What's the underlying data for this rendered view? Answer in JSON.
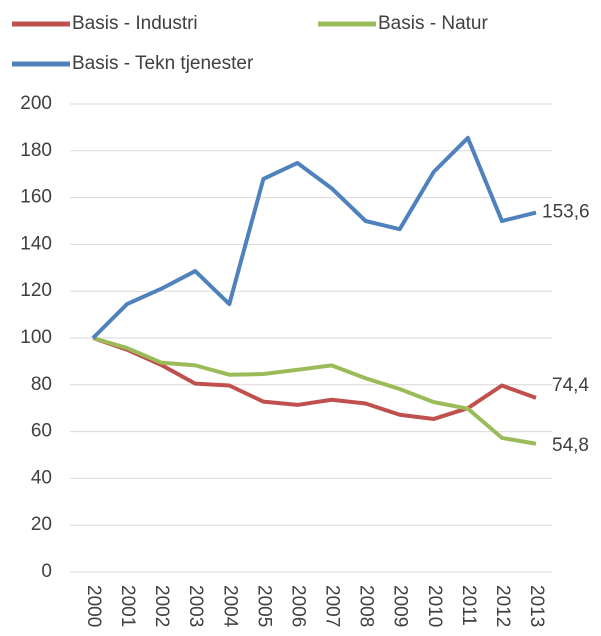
{
  "chart_data": {
    "type": "line",
    "categories": [
      "2000",
      "2001",
      "2002",
      "2003",
      "2004",
      "2005",
      "2006",
      "2007",
      "2008",
      "2009",
      "2010",
      "2011",
      "2012",
      "2013"
    ],
    "series": [
      {
        "name": "Basis - Industri",
        "color": "#c0504d",
        "values": [
          100,
          95,
          88.5,
          80.5,
          79.7,
          72.8,
          71.4,
          73.6,
          72,
          67.2,
          65.4,
          70,
          79.7,
          74.4
        ],
        "value_labels": [
          null,
          null,
          null,
          null,
          null,
          null,
          null,
          null,
          null,
          null,
          null,
          null,
          null,
          "74,4"
        ]
      },
      {
        "name": "Basis - Natur",
        "color": "#9bbb59",
        "values": [
          100,
          95.7,
          89.5,
          88.3,
          84.3,
          84.6,
          86.4,
          88.3,
          82.8,
          78.2,
          72.6,
          69.8,
          57.3,
          54.8
        ],
        "value_labels": [
          null,
          null,
          null,
          null,
          null,
          null,
          null,
          null,
          null,
          null,
          null,
          null,
          null,
          "54,8"
        ]
      },
      {
        "name": "Basis - Tekn tjenester",
        "color": "#4f81bd",
        "values": [
          100,
          114.5,
          121,
          128.6,
          114.5,
          168,
          174.8,
          164,
          150,
          146.5,
          171,
          185.5,
          150,
          153.6
        ],
        "value_labels": [
          null,
          null,
          null,
          null,
          null,
          null,
          null,
          null,
          null,
          null,
          null,
          null,
          null,
          "153,6"
        ]
      }
    ],
    "ylim": [
      0,
      200
    ],
    "yticks": [
      0,
      20,
      40,
      60,
      80,
      100,
      120,
      140,
      160,
      180,
      200
    ],
    "grid": true,
    "legend": "top"
  }
}
